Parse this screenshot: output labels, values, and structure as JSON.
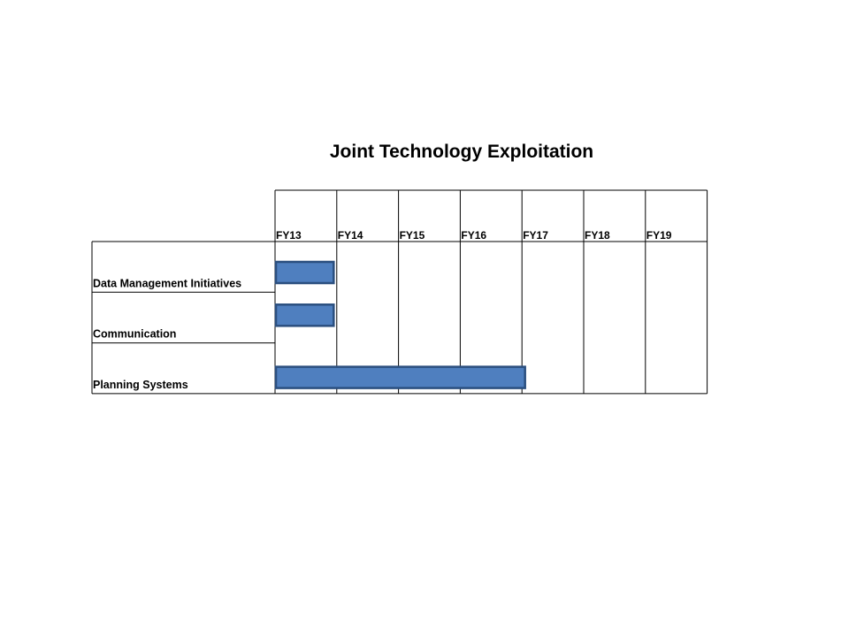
{
  "chart_data": {
    "type": "bar",
    "title": "Joint Technology Exploitation",
    "periods": [
      "FY13",
      "FY14",
      "FY15",
      "FY16",
      "FY17",
      "FY18",
      "FY19"
    ],
    "tasks": [
      {
        "name": "Data Management Initiatives",
        "start": 0,
        "end": 0.95
      },
      {
        "name": "Communication",
        "start": 0,
        "end": 0.95
      },
      {
        "name": "Planning Systems",
        "start": 0,
        "end": 4.05
      }
    ],
    "colors": {
      "bar_fill": "#4f7fbf",
      "bar_stroke": "#2b4f7f",
      "grid": "#000000"
    }
  }
}
